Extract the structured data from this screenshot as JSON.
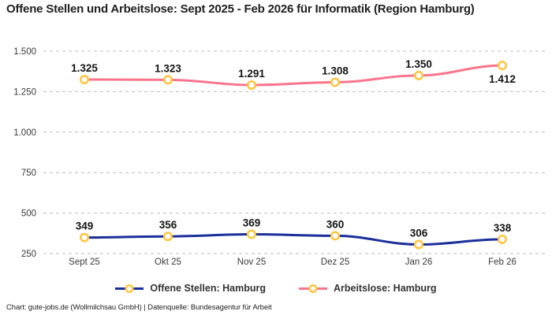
{
  "title": "Offene Stellen und Arbeitslose: Sept 2025 - Feb 2026 für Informatik (Region Hamburg)",
  "footer": "Chart: gute-jobs.de (Wollmilchsau GmbH) | Datenquelle: Bundesagentur für Arbeit",
  "colors": {
    "open_positions_line": "#1B2F9B",
    "unemployed_line": "#F9758C",
    "marker_ring": "#FFC53D",
    "marker_fill": "#FFFFFF",
    "gridline": "#BCBCBC",
    "tick_text": "#3A3A3A",
    "data_label_text": "#141414"
  },
  "legend": {
    "items": [
      {
        "label": "Offene Stellen: Hamburg",
        "series_index": 0
      },
      {
        "label": "Arbeitslose: Hamburg",
        "series_index": 1
      }
    ]
  },
  "chart_data": {
    "type": "line",
    "title": "Offene Stellen und Arbeitslose: Sept 2025 - Feb 2026 für Informatik (Region Hamburg)",
    "categories": [
      "Sept 25",
      "Okt 25",
      "Nov 25",
      "Dez 25",
      "Jan 26",
      "Feb 26"
    ],
    "series": [
      {
        "name": "Offene Stellen: Hamburg",
        "color_key": "open_positions_line",
        "values": [
          349,
          356,
          369,
          360,
          306,
          338
        ],
        "value_labels": [
          "349",
          "356",
          "369",
          "360",
          "306",
          "338"
        ],
        "label_below_indices": []
      },
      {
        "name": "Arbeitslose: Hamburg",
        "color_key": "unemployed_line",
        "values": [
          1325,
          1323,
          1291,
          1308,
          1350,
          1412
        ],
        "value_labels": [
          "1.325",
          "1.323",
          "1.291",
          "1.308",
          "1.350",
          "1.412"
        ],
        "label_below_indices": [
          5
        ]
      }
    ],
    "xlabel": "",
    "ylabel": "",
    "ylim": [
      250,
      1500
    ],
    "yticks": [
      1500,
      1250,
      1000,
      750,
      500,
      250
    ],
    "ytick_labels": [
      "1.500",
      "1.250",
      "1.000",
      "750",
      "500",
      "250"
    ],
    "grid": "horizontal-dashed",
    "legend_position": "bottom",
    "marker": "open-circle"
  }
}
